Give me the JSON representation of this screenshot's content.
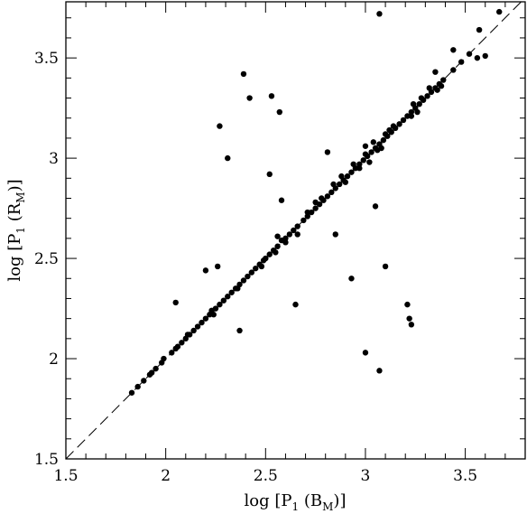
{
  "chart_data": {
    "type": "scatter",
    "title": "",
    "xlabel": "log [P1 (BM)]",
    "ylabel": "log [P1 (RM)]",
    "xlabel_parts": {
      "pre": "log [P",
      "sub1": "1",
      "mid": " (B",
      "sub2": "M",
      "post": ")]"
    },
    "ylabel_parts": {
      "pre": "log [P",
      "sub1": "1",
      "mid": " (R",
      "sub2": "M",
      "post": ")]"
    },
    "xlim": [
      1.5,
      3.8
    ],
    "ylim": [
      1.5,
      3.78
    ],
    "xticks": [
      "1.5",
      "2",
      "2.5",
      "3",
      "3.5"
    ],
    "yticks": [
      "1.5",
      "2",
      "2.5",
      "3",
      "3.5"
    ],
    "reference_line": {
      "style": "dashed",
      "relation": "y = x"
    },
    "grid": false,
    "series": [
      {
        "values": [
          [
            1.83,
            1.83
          ],
          [
            1.86,
            1.86
          ],
          [
            1.89,
            1.89
          ],
          [
            1.92,
            1.92
          ],
          [
            1.93,
            1.93
          ],
          [
            1.95,
            1.95
          ],
          [
            1.98,
            1.98
          ],
          [
            1.99,
            2.0
          ],
          [
            2.03,
            2.03
          ],
          [
            2.05,
            2.05
          ],
          [
            2.06,
            2.06
          ],
          [
            2.08,
            2.08
          ],
          [
            2.1,
            2.1
          ],
          [
            2.12,
            2.12
          ],
          [
            2.14,
            2.14
          ],
          [
            2.16,
            2.16
          ],
          [
            2.18,
            2.18
          ],
          [
            2.2,
            2.2
          ],
          [
            2.22,
            2.22
          ],
          [
            2.23,
            2.24
          ],
          [
            2.25,
            2.25
          ],
          [
            2.27,
            2.27
          ],
          [
            2.29,
            2.29
          ],
          [
            2.31,
            2.31
          ],
          [
            2.33,
            2.33
          ],
          [
            2.35,
            2.35
          ],
          [
            2.37,
            2.37
          ],
          [
            2.39,
            2.39
          ],
          [
            2.41,
            2.41
          ],
          [
            2.43,
            2.43
          ],
          [
            2.45,
            2.45
          ],
          [
            2.47,
            2.47
          ],
          [
            2.49,
            2.49
          ],
          [
            2.5,
            2.5
          ],
          [
            2.52,
            2.52
          ],
          [
            2.54,
            2.54
          ],
          [
            2.56,
            2.56
          ],
          [
            2.58,
            2.59
          ],
          [
            2.6,
            2.6
          ],
          [
            2.62,
            2.62
          ],
          [
            2.64,
            2.64
          ],
          [
            2.66,
            2.66
          ],
          [
            2.69,
            2.69
          ],
          [
            2.71,
            2.71
          ],
          [
            2.73,
            2.73
          ],
          [
            2.75,
            2.75
          ],
          [
            2.77,
            2.77
          ],
          [
            2.79,
            2.79
          ],
          [
            2.81,
            2.81
          ],
          [
            2.83,
            2.83
          ],
          [
            2.85,
            2.85
          ],
          [
            2.87,
            2.87
          ],
          [
            2.89,
            2.89
          ],
          [
            2.91,
            2.91
          ],
          [
            2.93,
            2.93
          ],
          [
            2.95,
            2.95
          ],
          [
            2.97,
            2.97
          ],
          [
            2.99,
            2.99
          ],
          [
            3.01,
            3.01
          ],
          [
            3.03,
            3.03
          ],
          [
            3.05,
            3.05
          ],
          [
            3.07,
            3.07
          ],
          [
            3.09,
            3.09
          ],
          [
            3.11,
            3.11
          ],
          [
            3.13,
            3.13
          ],
          [
            3.15,
            3.15
          ],
          [
            3.17,
            3.17
          ],
          [
            3.19,
            3.19
          ],
          [
            3.21,
            3.21
          ],
          [
            3.23,
            3.23
          ],
          [
            3.25,
            3.25
          ],
          [
            3.27,
            3.27
          ],
          [
            3.29,
            3.29
          ],
          [
            3.31,
            3.31
          ],
          [
            3.33,
            3.33
          ],
          [
            3.35,
            3.35
          ],
          [
            3.37,
            3.37
          ],
          [
            3.39,
            3.39
          ],
          [
            3.44,
            3.44
          ],
          [
            3.48,
            3.48
          ],
          [
            3.52,
            3.52
          ],
          [
            3.67,
            3.73
          ],
          [
            2.11,
            2.12
          ],
          [
            2.24,
            2.22
          ],
          [
            2.36,
            2.35
          ],
          [
            2.48,
            2.46
          ],
          [
            2.55,
            2.53
          ],
          [
            2.6,
            2.58
          ],
          [
            2.71,
            2.73
          ],
          [
            2.78,
            2.8
          ],
          [
            2.84,
            2.87
          ],
          [
            2.9,
            2.88
          ],
          [
            2.97,
            2.95
          ],
          [
            3.0,
            3.02
          ],
          [
            3.06,
            3.04
          ],
          [
            3.1,
            3.12
          ],
          [
            3.14,
            3.16
          ],
          [
            3.23,
            3.21
          ],
          [
            3.28,
            3.3
          ],
          [
            3.38,
            3.36
          ],
          [
            3.0,
            3.06
          ],
          [
            3.02,
            2.98
          ],
          [
            3.04,
            3.08
          ],
          [
            3.08,
            3.05
          ],
          [
            3.12,
            3.14
          ],
          [
            3.24,
            3.27
          ],
          [
            3.26,
            3.23
          ],
          [
            3.32,
            3.35
          ],
          [
            3.36,
            3.34
          ],
          [
            2.56,
            2.61
          ],
          [
            2.66,
            2.62
          ],
          [
            2.75,
            2.78
          ],
          [
            2.88,
            2.91
          ],
          [
            2.94,
            2.97
          ],
          [
            3.07,
            3.72
          ],
          [
            3.56,
            3.5
          ],
          [
            3.6,
            3.51
          ],
          [
            3.57,
            3.64
          ],
          [
            2.39,
            3.42
          ],
          [
            2.42,
            3.3
          ],
          [
            2.53,
            3.31
          ],
          [
            2.57,
            3.23
          ],
          [
            2.27,
            3.16
          ],
          [
            2.31,
            3.0
          ],
          [
            2.52,
            2.92
          ],
          [
            2.58,
            2.79
          ],
          [
            2.26,
            2.46
          ],
          [
            2.81,
            3.03
          ],
          [
            2.85,
            2.62
          ],
          [
            3.05,
            2.76
          ],
          [
            2.2,
            2.44
          ],
          [
            2.05,
            2.28
          ],
          [
            2.65,
            2.27
          ],
          [
            2.37,
            2.14
          ],
          [
            2.93,
            2.4
          ],
          [
            3.1,
            2.46
          ],
          [
            3.21,
            2.27
          ],
          [
            3.22,
            2.2
          ],
          [
            3.23,
            2.17
          ],
          [
            3.0,
            2.03
          ],
          [
            3.07,
            1.94
          ],
          [
            3.44,
            3.54
          ],
          [
            3.35,
            3.43
          ]
        ]
      }
    ]
  }
}
